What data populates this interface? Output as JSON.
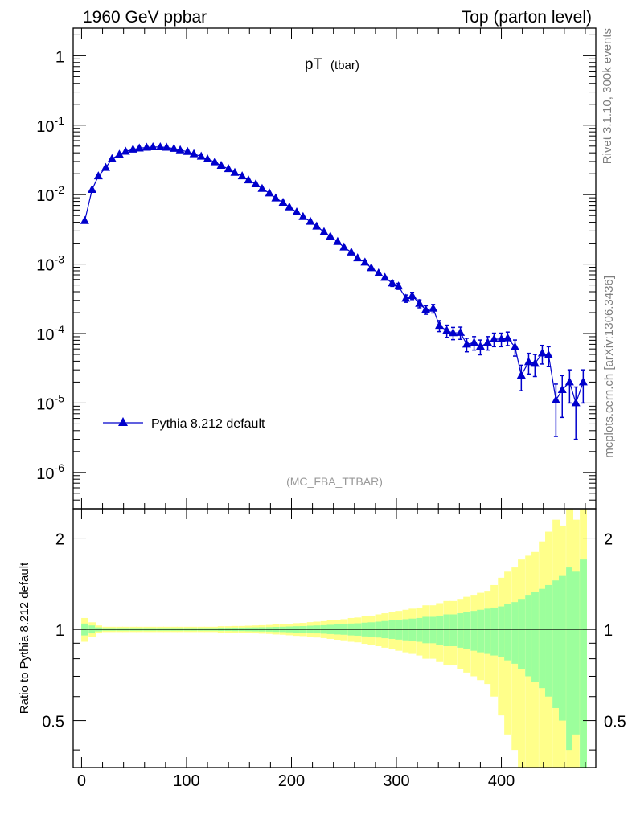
{
  "header": {
    "left": "1960 GeV ppbar",
    "right": "Top (parton level)"
  },
  "plot_title": {
    "main": "pT",
    "sub": "(tbar)"
  },
  "watermark": "(MC_FBA_TTBAR)",
  "side_texts": {
    "rivet": "Rivet 3.1.10,  300k events",
    "mcplots": "mcplots.cern.ch [arXiv:1306.3436]"
  },
  "colors": {
    "series": "#0000cc",
    "band_outer": "#ffff8a",
    "band_inner": "#9cff9c",
    "watermark": "#999999",
    "side_text": "#7f7f7f"
  },
  "chart_data": [
    {
      "type": "line",
      "yscale": "log",
      "xlim": [
        -8,
        490
      ],
      "ylim": [
        3e-07,
        2.5
      ],
      "ytick_labels": [
        "1",
        "10^-1",
        "10^-2",
        "10^-3",
        "10^-4",
        "10^-5",
        "10^-6"
      ],
      "legend_position": "bottom-left",
      "series": [
        {
          "name": "Pythia 8.212 default",
          "marker": "triangle",
          "x": [
            3,
            10,
            16,
            23,
            29,
            36,
            42,
            49,
            55,
            62,
            68,
            75,
            81,
            88,
            94,
            101,
            107,
            114,
            120,
            127,
            133,
            140,
            146,
            153,
            159,
            166,
            172,
            179,
            185,
            192,
            198,
            205,
            211,
            218,
            224,
            231,
            237,
            244,
            250,
            257,
            263,
            270,
            276,
            283,
            289,
            296,
            302,
            309,
            315,
            322,
            328,
            335,
            341,
            348,
            354,
            361,
            367,
            374,
            380,
            387,
            393,
            400,
            406,
            413,
            419,
            426,
            432,
            439,
            445,
            452,
            458,
            465,
            471,
            478
          ],
          "y": [
            0.0042,
            0.0118,
            0.0185,
            0.0245,
            0.0328,
            0.0378,
            0.0418,
            0.0448,
            0.0465,
            0.0478,
            0.0485,
            0.0485,
            0.0478,
            0.046,
            0.0438,
            0.0415,
            0.0385,
            0.0355,
            0.0325,
            0.0295,
            0.0262,
            0.0235,
            0.0208,
            0.0185,
            0.0162,
            0.0142,
            0.0122,
            0.0105,
            0.0089,
            0.0077,
            0.0066,
            0.0056,
            0.0048,
            0.0041,
            0.0035,
            0.0029,
            0.0025,
            0.0021,
            0.00175,
            0.00148,
            0.00122,
            0.00106,
            0.00088,
            0.00074,
            0.00064,
            0.00053,
            0.00048,
            0.00032,
            0.00035,
            0.00027,
            0.00022,
            0.00023,
            0.00013,
            0.00011,
            0.000102,
            0.000103,
            7e-05,
            7.4e-05,
            6.5e-05,
            7.4e-05,
            8.3e-05,
            8.3e-05,
            8.6e-05,
            6.4e-05,
            2.5e-05,
            3.9e-05,
            3.7e-05,
            5.2e-05,
            4.9e-05,
            1.1e-05,
            1.55e-05,
            2e-05,
            1e-05,
            2e-05
          ],
          "err_rel": [
            0.02,
            0.02,
            0.02,
            0.02,
            0.02,
            0.02,
            0.02,
            0.02,
            0.02,
            0.02,
            0.02,
            0.02,
            0.02,
            0.02,
            0.02,
            0.02,
            0.02,
            0.02,
            0.02,
            0.02,
            0.02,
            0.02,
            0.02,
            0.02,
            0.02,
            0.03,
            0.03,
            0.03,
            0.03,
            0.03,
            0.04,
            0.04,
            0.04,
            0.04,
            0.05,
            0.05,
            0.05,
            0.06,
            0.06,
            0.07,
            0.07,
            0.08,
            0.08,
            0.09,
            0.09,
            0.1,
            0.1,
            0.12,
            0.12,
            0.13,
            0.14,
            0.14,
            0.18,
            0.2,
            0.2,
            0.2,
            0.22,
            0.22,
            0.24,
            0.22,
            0.22,
            0.22,
            0.22,
            0.26,
            0.4,
            0.33,
            0.35,
            0.3,
            0.32,
            0.7,
            0.6,
            0.5,
            0.7,
            0.5
          ]
        }
      ]
    },
    {
      "type": "area",
      "yscale": "log",
      "ylabel": "Ratio to Pythia 8.212 default",
      "xlim": [
        -8,
        490
      ],
      "ylim": [
        0.35,
        2.5
      ],
      "xtick_labels": [
        "0",
        "100",
        "200",
        "300",
        "400"
      ],
      "ytick_labels": [
        "0.5",
        "1",
        "2"
      ],
      "reference_line": 1,
      "band_inner_halfwidth": [
        0.045,
        0.03,
        0.015,
        0.01,
        0.01,
        0.01,
        0.01,
        0.01,
        0.01,
        0.01,
        0.01,
        0.01,
        0.01,
        0.01,
        0.01,
        0.01,
        0.01,
        0.01,
        0.01,
        0.01,
        0.012,
        0.012,
        0.013,
        0.013,
        0.014,
        0.015,
        0.016,
        0.017,
        0.019,
        0.02,
        0.022,
        0.024,
        0.025,
        0.028,
        0.03,
        0.032,
        0.035,
        0.038,
        0.04,
        0.045,
        0.047,
        0.052,
        0.055,
        0.06,
        0.065,
        0.07,
        0.075,
        0.08,
        0.085,
        0.09,
        0.1,
        0.1,
        0.11,
        0.12,
        0.12,
        0.13,
        0.14,
        0.15,
        0.16,
        0.17,
        0.18,
        0.19,
        0.21,
        0.23,
        0.26,
        0.3,
        0.33,
        0.36,
        0.4,
        0.45,
        0.5,
        0.6,
        0.55,
        0.7
      ],
      "band_outer_halfwidth": [
        0.09,
        0.055,
        0.03,
        0.02,
        0.02,
        0.02,
        0.02,
        0.02,
        0.02,
        0.02,
        0.02,
        0.02,
        0.02,
        0.02,
        0.02,
        0.02,
        0.02,
        0.02,
        0.02,
        0.02,
        0.024,
        0.024,
        0.026,
        0.026,
        0.028,
        0.03,
        0.032,
        0.034,
        0.038,
        0.04,
        0.044,
        0.048,
        0.05,
        0.056,
        0.06,
        0.064,
        0.07,
        0.076,
        0.08,
        0.09,
        0.094,
        0.104,
        0.11,
        0.12,
        0.13,
        0.14,
        0.15,
        0.16,
        0.17,
        0.18,
        0.2,
        0.2,
        0.22,
        0.24,
        0.24,
        0.26,
        0.28,
        0.3,
        0.32,
        0.34,
        0.4,
        0.48,
        0.55,
        0.6,
        0.7,
        0.75,
        0.8,
        0.95,
        1.1,
        1.3,
        1.2,
        1.6,
        1.3,
        1.6
      ]
    }
  ]
}
